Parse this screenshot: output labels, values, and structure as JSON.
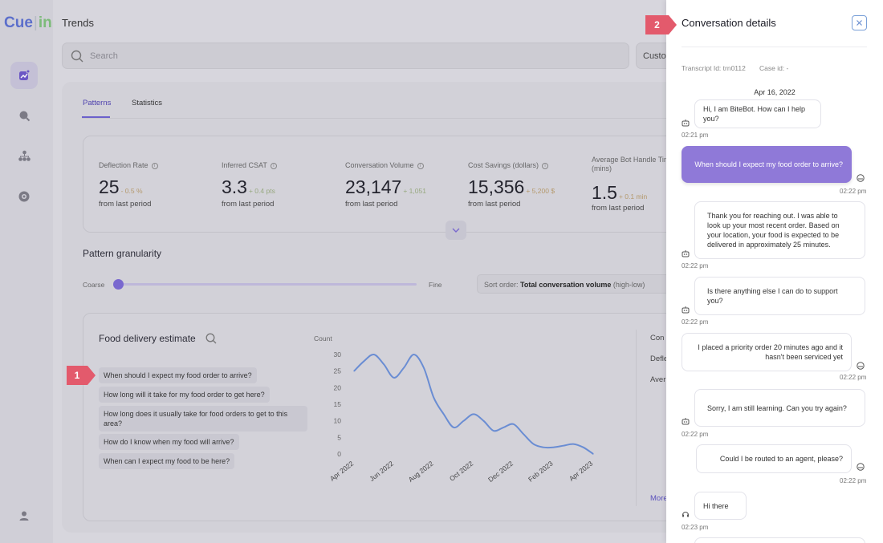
{
  "app": {
    "logo_left": "Cue",
    "logo_bar": "|",
    "logo_right": "in",
    "page_title": "Trends"
  },
  "search": {
    "placeholder": "Search",
    "customer_select": "Customer"
  },
  "tabs": [
    {
      "label": "Patterns"
    },
    {
      "label": "Statistics"
    }
  ],
  "metrics": [
    {
      "label": "Deflection Rate",
      "value": "25",
      "delta": "- 0.5 %",
      "sub": "from last period"
    },
    {
      "label": "Inferred CSAT",
      "value": "3.3",
      "delta": "+ 0.4 pts",
      "sub": "from last period"
    },
    {
      "label": "Conversation Volume",
      "value": "23,147",
      "delta": "+ 1,051",
      "sub": "from last period"
    },
    {
      "label": "Cost Savings (dollars)",
      "value": "15,356",
      "delta": "+ 5,200 $",
      "sub": "from last period"
    },
    {
      "label": "Average Bot Handle Time",
      "label2": "(mins)",
      "value": "1.5",
      "delta": "+ 0.1 min",
      "sub": "from last period"
    }
  ],
  "granularity": {
    "title": "Pattern granularity",
    "left": "Coarse",
    "right": "Fine",
    "level": 0.0
  },
  "sort": {
    "prefix": "Sort order:",
    "value": "Total conversation volume",
    "suffix": "(high-low)"
  },
  "pattern": {
    "title": "Food delivery estimate",
    "phrases": [
      "When should I expect my food order to arrive?",
      "How long will it take for my food order to get here?",
      "How long does it usually take for food orders to get to this area?",
      "How do I know when my food will arrive?",
      "When can I expect my food to be here?"
    ],
    "side_labels": [
      "Con",
      "Defle",
      "Aver"
    ],
    "more_link": "More"
  },
  "chart_data": {
    "type": "line",
    "ylabel": "Count",
    "ylim": [
      0,
      30
    ],
    "yticks": [
      0,
      5,
      10,
      15,
      20,
      25,
      30
    ],
    "tick_labels": [
      "Apr 2022",
      "Jun 2022",
      "Aug 2022",
      "Oct 2022",
      "Dec 2022",
      "Feb 2023",
      "Apr 2023"
    ],
    "x": [
      0,
      0.5,
      1,
      1.5,
      2,
      2.5,
      3,
      3.5,
      4,
      4.5,
      5,
      5.5,
      6,
      6.5,
      7,
      7.5,
      8,
      8.5,
      9,
      9.5,
      10,
      10.5,
      11,
      11.5,
      12
    ],
    "values": [
      25,
      28,
      30,
      27,
      23,
      26,
      30,
      26,
      17,
      12,
      8,
      10,
      12,
      10,
      7,
      8,
      9,
      6,
      3,
      2,
      2,
      2.5,
      3,
      2,
      0
    ]
  },
  "panel": {
    "title": "Conversation details",
    "transcript": "Transcript Id: trn0112",
    "case": "Case id: -",
    "date": "Apr 16, 2022",
    "messages": [
      {
        "role": "bot",
        "text": "Hi, I am BiteBot. How can I help you?",
        "time": "02:21 pm"
      },
      {
        "role": "user",
        "text": "When should I expect my food order to arrive?",
        "time": "02:22 pm"
      },
      {
        "role": "bot",
        "text": "Thank you for reaching out. I was able to look up your most recent order. Based on your location, your food is expected to be delivered in approximately 25 minutes.",
        "time": "02:22 pm"
      },
      {
        "role": "bot",
        "text": "Is there anything else I can do to support you?",
        "time": "02:22 pm"
      },
      {
        "role": "user",
        "text": "I placed a priority order 20 minutes ago and it hasn't been serviced yet",
        "time": "02:22 pm"
      },
      {
        "role": "bot",
        "text": "Sorry, I am still learning. Can you try again?",
        "time": "02:22 pm"
      },
      {
        "role": "user",
        "text": "Could I be routed to an agent, please?",
        "time": "02:22 pm"
      },
      {
        "role": "bot",
        "text": "Hi there",
        "time": "02:23 pm"
      }
    ]
  },
  "markers": {
    "one": "1",
    "two": "2"
  },
  "colors": {
    "accent": "#7a68d4",
    "chart_line": "#6a8fd8",
    "marker": "#e35a6c",
    "user_bubble": "#8f79d8"
  }
}
